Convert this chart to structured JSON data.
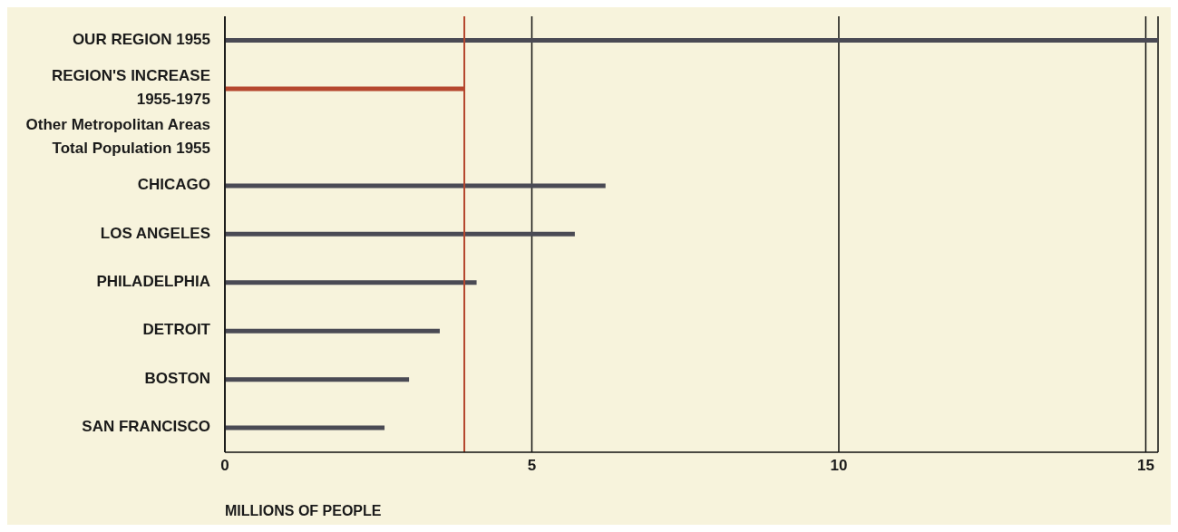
{
  "chart_data": {
    "type": "bar",
    "orientation": "horizontal",
    "xlabel": "MILLIONS OF PEOPLE",
    "categories": [
      "OUR REGION 1955",
      "REGION'S INCREASE 1955-1975",
      "Other Metropolitan Areas Total Population 1955",
      "CHICAGO",
      "LOS ANGELES",
      "PHILADELPHIA",
      "DETROIT",
      "BOSTON",
      "SAN FRANCISCO"
    ],
    "values": [
      15.2,
      3.9,
      null,
      6.2,
      5.7,
      4.1,
      3.5,
      3.0,
      2.6
    ],
    "colors": [
      "#4a4a54",
      "#b5472e",
      null,
      "#4a4a54",
      "#4a4a54",
      "#4a4a54",
      "#4a4a54",
      "#4a4a54",
      "#4a4a54"
    ],
    "xlim": [
      0,
      15.2
    ],
    "xticks": [
      0,
      5,
      10,
      15
    ],
    "grid": "x",
    "ref_lines": [
      {
        "axis": "x",
        "value": 3.9,
        "color": "#b5472e"
      }
    ]
  }
}
